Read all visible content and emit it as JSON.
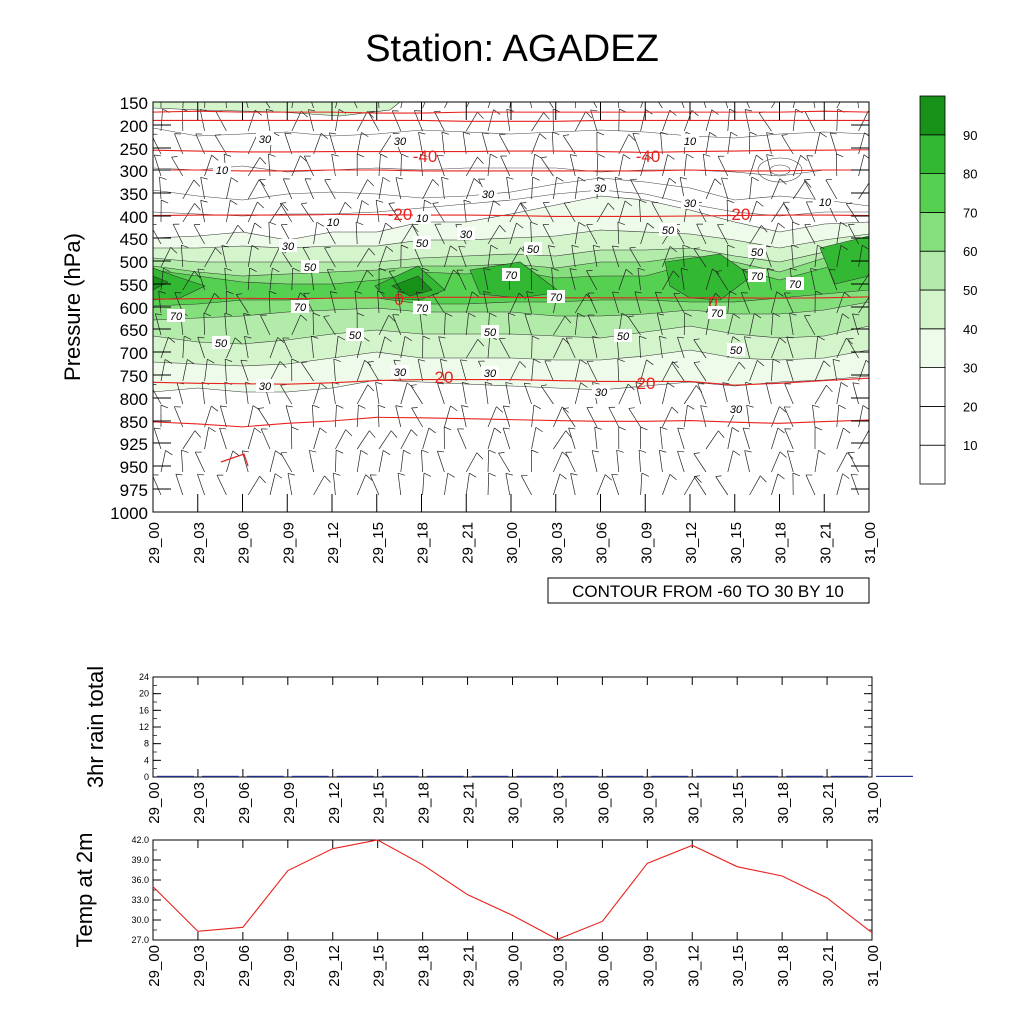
{
  "title": "Station: AGADEZ",
  "contour_note": "CONTOUR FROM -60 TO 30 BY 10",
  "chart_data": [
    {
      "type": "heatmap",
      "name": "upper-air",
      "ylabel": "Pressure (hPa)",
      "pressure_levels": [
        "150",
        "200",
        "250",
        "300",
        "350",
        "400",
        "450",
        "500",
        "550",
        "600",
        "650",
        "700",
        "750",
        "800",
        "850",
        "925",
        "950",
        "975",
        "1000"
      ],
      "time_labels": [
        "29_00",
        "29_03",
        "29_06",
        "29_09",
        "29_12",
        "29_15",
        "29_18",
        "29_21",
        "30_00",
        "30_03",
        "30_06",
        "30_09",
        "30_12",
        "30_15",
        "30_18",
        "30_21",
        "31_00"
      ],
      "colorbar_labels": [
        "10",
        "20",
        "30",
        "40",
        "50",
        "60",
        "70",
        "80",
        "90"
      ],
      "colorbar_colors": [
        "#ffffff",
        "#ffffff",
        "#ffffff",
        "#eefbea",
        "#d4f4cc",
        "#b2ebaa",
        "#85df7c",
        "#55d050",
        "#32b832",
        "#179117"
      ],
      "humidity_labels": [
        "10",
        "30",
        "50",
        "70"
      ],
      "temperature_labels": [
        "-40",
        "-20",
        "0",
        "20"
      ],
      "temperature_contours": [
        {
          "label": "-40",
          "p": [
            255,
            257,
            259,
            259,
            258,
            258,
            258,
            258,
            257,
            257,
            258,
            260,
            258,
            257,
            255,
            255,
            254
          ]
        },
        {
          "label": "-20",
          "p": [
            399,
            398,
            398,
            398,
            397,
            397,
            398,
            398,
            399,
            401,
            401,
            401,
            400,
            399,
            398,
            398,
            399
          ]
        },
        {
          "label": "0",
          "p": [
            583,
            582,
            581,
            582,
            581,
            580,
            579,
            579,
            579,
            580,
            580,
            580,
            580,
            580,
            581,
            580,
            578
          ]
        },
        {
          "label": "20",
          "p": [
            766,
            768,
            769,
            770,
            767,
            762,
            760,
            760,
            760,
            762,
            764,
            764,
            764,
            772,
            768,
            762,
            757
          ]
        },
        {
          "label": "",
          "p": [
            853,
            860,
            870,
            858,
            850,
            842,
            843,
            845,
            847,
            849,
            851,
            851,
            849,
            854,
            858,
            852,
            848
          ]
        }
      ]
    },
    {
      "type": "bar",
      "name": "rain",
      "ylabel": "3hr rain total",
      "ylim": [
        0,
        24
      ],
      "yticks": [
        "0",
        "4",
        "8",
        "12",
        "16",
        "20",
        "24"
      ],
      "x": [
        "29_00",
        "29_03",
        "29_06",
        "29_09",
        "29_12",
        "29_15",
        "29_18",
        "29_21",
        "30_00",
        "30_03",
        "30_06",
        "30_09",
        "30_12",
        "30_15",
        "30_18",
        "30_21",
        "31_00"
      ],
      "values": [
        0,
        0,
        0,
        0,
        0,
        0,
        0,
        0,
        0,
        0,
        0.2,
        0,
        0,
        0,
        0.3,
        0,
        0
      ]
    },
    {
      "type": "line",
      "name": "temp",
      "ylabel": "Temp at 2m",
      "ylim": [
        27.0,
        42.0
      ],
      "yticks": [
        "27.0",
        "30.0",
        "33.0",
        "36.0",
        "39.0",
        "42.0"
      ],
      "x": [
        "29_00",
        "29_03",
        "29_06",
        "29_09",
        "29_12",
        "29_15",
        "29_18",
        "29_21",
        "30_00",
        "30_03",
        "30_06",
        "30_09",
        "30_12",
        "30_15",
        "30_18",
        "30_21",
        "31_00"
      ],
      "values": [
        35.0,
        28.3,
        28.9,
        37.4,
        40.7,
        42.0,
        38.3,
        33.8,
        30.7,
        27.1,
        29.8,
        38.5,
        41.2,
        38.0,
        36.6,
        33.3,
        28.1
      ]
    }
  ]
}
